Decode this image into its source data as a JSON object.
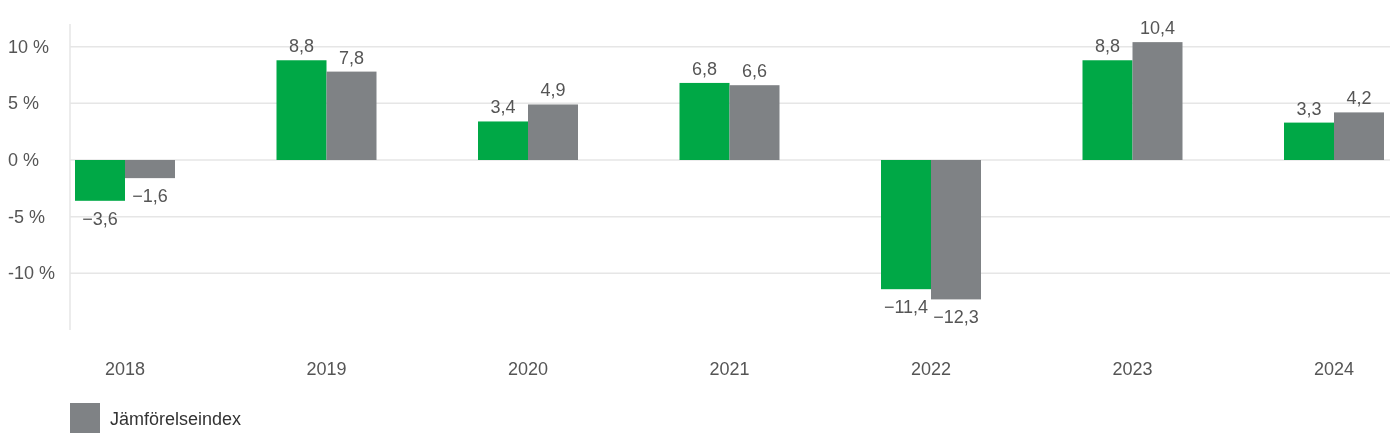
{
  "chart_data": {
    "type": "bar",
    "categories": [
      "2018",
      "2019",
      "2020",
      "2021",
      "2022",
      "2023",
      "2024"
    ],
    "series": [
      {
        "color": "#00a846",
        "values": [
          -3.6,
          8.8,
          3.4,
          6.8,
          -11.4,
          8.8,
          3.3
        ],
        "value_labels": [
          "−3,6",
          "8,8",
          "3,4",
          "6,8",
          "−11,4",
          "8,8",
          "3,3"
        ]
      },
      {
        "name": "Jämförelseindex",
        "color": "#7f8285",
        "values": [
          -1.6,
          7.8,
          4.9,
          6.6,
          -12.3,
          10.4,
          4.2
        ],
        "value_labels": [
          "−1,6",
          "7,8",
          "4,9",
          "6,6",
          "−12,3",
          "10,4",
          "4,2"
        ]
      }
    ],
    "ylim": [
      -15,
      12
    ],
    "yticks": [
      {
        "value": -10,
        "label": "-10 %"
      },
      {
        "value": -5,
        "label": "-5 %"
      },
      {
        "value": 0,
        "label": "0 %"
      },
      {
        "value": 5,
        "label": "5 %"
      },
      {
        "value": 10,
        "label": "10 %"
      }
    ],
    "grid": "y",
    "legend": "bottom"
  }
}
